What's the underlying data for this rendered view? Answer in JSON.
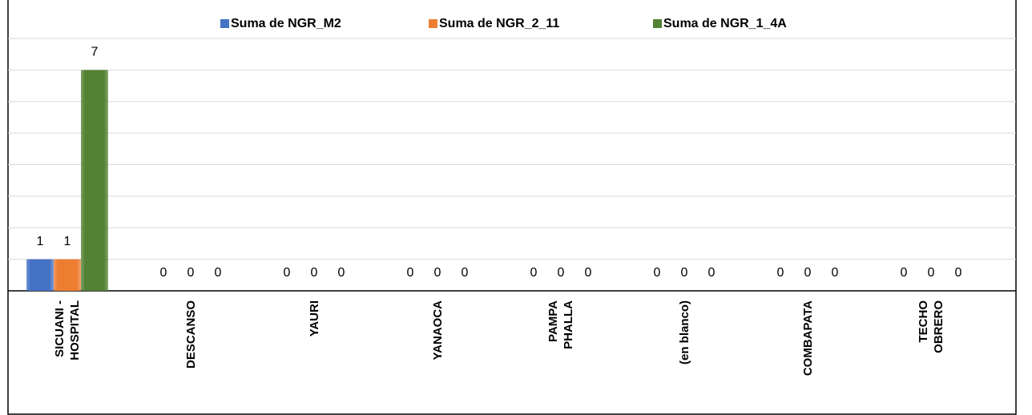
{
  "chart_data": {
    "type": "bar",
    "categories": [
      "SICUANI - HOSPITAL",
      "DESCANSO",
      "YAURI",
      "YANAOCA",
      "PAMPA PHALLA",
      "(en blanco)",
      "COMBAPATA",
      "TECHO OBRERO"
    ],
    "series": [
      {
        "name": "Suma de NGR_M2",
        "color": "#4472c4",
        "values": [
          1,
          0,
          0,
          0,
          0,
          0,
          0,
          0
        ]
      },
      {
        "name": "Suma de NGR_2_11",
        "color": "#ed7d31",
        "values": [
          1,
          0,
          0,
          0,
          0,
          0,
          0,
          0
        ]
      },
      {
        "name": "Suma de NGR_1_4A",
        "color": "#548235",
        "values": [
          7,
          0,
          0,
          0,
          0,
          0,
          0,
          0
        ]
      }
    ],
    "ylim": [
      0,
      8
    ],
    "yticks": [
      0,
      1,
      2,
      3,
      4,
      5,
      6,
      7,
      8
    ],
    "grid": true
  }
}
